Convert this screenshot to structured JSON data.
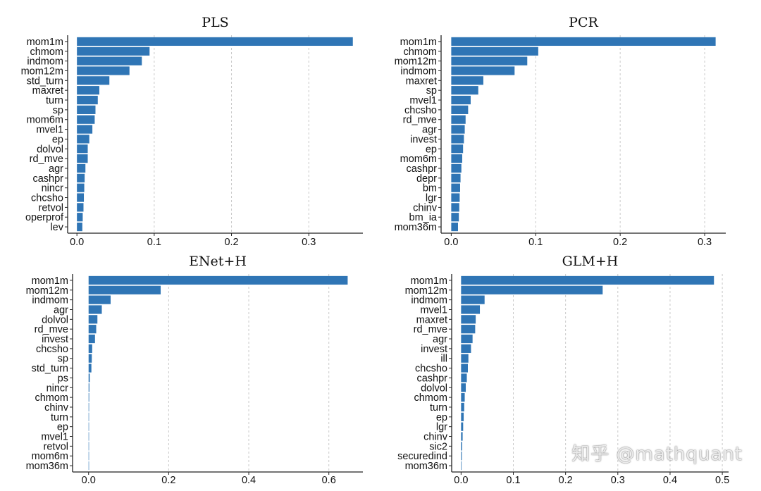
{
  "watermark": "知乎 @mathquant",
  "chart_data": [
    {
      "type": "bar",
      "orientation": "horizontal",
      "title": "PLS",
      "categories": [
        "mom1m",
        "chmom",
        "indmom",
        "mom12m",
        "std_turn",
        "maxret",
        "turn",
        "sp",
        "mom6m",
        "mvel1",
        "ep",
        "dolvol",
        "rd_mve",
        "agr",
        "cashpr",
        "nincr",
        "chcsho",
        "retvol",
        "operprof",
        "lev"
      ],
      "values": [
        0.357,
        0.094,
        0.084,
        0.068,
        0.042,
        0.029,
        0.027,
        0.024,
        0.023,
        0.02,
        0.016,
        0.014,
        0.014,
        0.011,
        0.01,
        0.0095,
        0.009,
        0.0085,
        0.0075,
        0.007
      ],
      "xlim": [
        -0.012,
        0.37
      ],
      "xticks": [
        "0.0",
        "0.1",
        "0.2",
        "0.3"
      ],
      "tick_values": [
        0,
        0.1,
        0.2,
        0.3
      ],
      "grid": "vertical dashed",
      "color": "#2f75b5"
    },
    {
      "type": "bar",
      "orientation": "horizontal",
      "title": "PCR",
      "categories": [
        "mom1m",
        "chmom",
        "mom12m",
        "indmom",
        "maxret",
        "sp",
        "mvel1",
        "chcsho",
        "rd_mve",
        "agr",
        "invest",
        "ep",
        "mom6m",
        "cashpr",
        "depr",
        "bm",
        "lgr",
        "chinv",
        "bm_ia",
        "mom36m"
      ],
      "values": [
        0.313,
        0.103,
        0.09,
        0.075,
        0.038,
        0.032,
        0.023,
        0.02,
        0.017,
        0.016,
        0.015,
        0.014,
        0.013,
        0.012,
        0.011,
        0.0105,
        0.01,
        0.0095,
        0.009,
        0.008
      ],
      "xlim": [
        -0.012,
        0.325
      ],
      "xticks": [
        "0.0",
        "0.1",
        "0.2",
        "0.3"
      ],
      "tick_values": [
        0,
        0.1,
        0.2,
        0.3
      ],
      "grid": "vertical dashed",
      "color": "#2f75b5"
    },
    {
      "type": "bar",
      "orientation": "horizontal",
      "title": "ENet+H",
      "categories": [
        "mom1m",
        "mom12m",
        "indmom",
        "agr",
        "dolvol",
        "rd_mve",
        "invest",
        "chcsho",
        "sp",
        "std_turn",
        "ps",
        "nincr",
        "chmom",
        "chinv",
        "turn",
        "ep",
        "mvel1",
        "retvol",
        "mom6m",
        "mom36m"
      ],
      "values": [
        0.647,
        0.18,
        0.055,
        0.033,
        0.022,
        0.019,
        0.016,
        0.009,
        0.008,
        0.007,
        0.003,
        0.002,
        0.0015,
        0.0012,
        0.001,
        0.0008,
        0.0007,
        0.0006,
        0.0005,
        0.0004
      ],
      "xlim": [
        -0.04,
        0.685
      ],
      "xticks": [
        "0.0",
        "0.2",
        "0.4",
        "0.6"
      ],
      "tick_values": [
        0,
        0.2,
        0.4,
        0.6
      ],
      "grid": "vertical dashed",
      "color": "#2f75b5"
    },
    {
      "type": "bar",
      "orientation": "horizontal",
      "title": "GLM+H",
      "categories": [
        "mom1m",
        "mom12m",
        "indmom",
        "mvel1",
        "maxret",
        "rd_mve",
        "agr",
        "invest",
        "ill",
        "chcsho",
        "cashpr",
        "dolvol",
        "chmom",
        "turn",
        "ep",
        "lgr",
        "chinv",
        "sic2",
        "securedind",
        "mom36m"
      ],
      "values": [
        0.484,
        0.271,
        0.045,
        0.036,
        0.028,
        0.027,
        0.022,
        0.019,
        0.014,
        0.013,
        0.011,
        0.009,
        0.007,
        0.006,
        0.005,
        0.004,
        0.003,
        0.002,
        0.0015,
        0.001
      ],
      "xlim": [
        -0.018,
        0.512
      ],
      "xticks": [
        "0.0",
        "0.1",
        "0.2",
        "0.3",
        "0.4",
        "0.5"
      ],
      "tick_values": [
        0,
        0.1,
        0.2,
        0.3,
        0.4,
        0.5
      ],
      "grid": "vertical dashed",
      "color": "#2f75b5"
    }
  ]
}
